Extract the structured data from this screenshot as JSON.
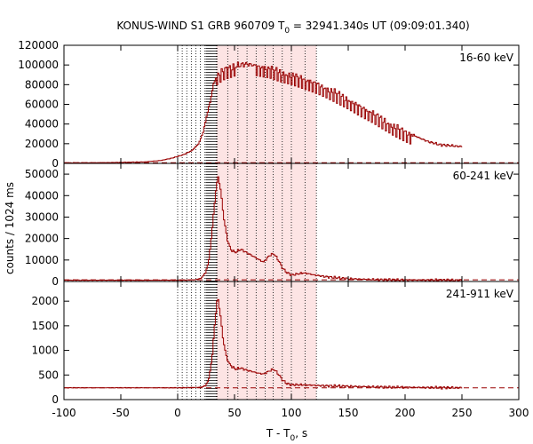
{
  "chart_data": {
    "type": "line",
    "title": "KONUS-WIND S1 GRB 960709 T",
    "title_sub": "0",
    "title_rest": " = 32941.340s UT (09:09:01.340)",
    "xlabel_main": "T - T",
    "xlabel_sub": "0",
    "xlabel_rest": ", s",
    "ylabel": "counts / 1024 ms",
    "xlim": [
      -100,
      300
    ],
    "x_ticks": [
      -100,
      -50,
      0,
      50,
      100,
      150,
      200,
      250,
      300
    ],
    "colors": {
      "curve": "#990000",
      "shade": "#fde4e4",
      "background_line": "#990000"
    },
    "shaded_interval": [
      34,
      122
    ],
    "vlines_sparse": [
      0,
      4,
      8,
      12,
      16,
      20,
      24
    ],
    "vlines_dense_range": [
      25,
      35
    ],
    "vlines_shaded": [
      34,
      44,
      53,
      61,
      69,
      77,
      84,
      92,
      100,
      112,
      122
    ],
    "panels": [
      {
        "label": "16-60 keV",
        "ylim": [
          0,
          120000
        ],
        "y_ticks": [
          0,
          20000,
          40000,
          60000,
          80000,
          100000,
          120000
        ],
        "background_level": 700,
        "series": [
          {
            "x": -100,
            "y": 500
          },
          {
            "x": -60,
            "y": 800
          },
          {
            "x": -30,
            "y": 1500
          },
          {
            "x": -15,
            "y": 3000
          },
          {
            "x": -5,
            "y": 5500
          },
          {
            "x": 5,
            "y": 9000
          },
          {
            "x": 12,
            "y": 13000
          },
          {
            "x": 18,
            "y": 20000
          },
          {
            "x": 22,
            "y": 32000
          },
          {
            "x": 25,
            "y": 48000
          },
          {
            "x": 28,
            "y": 62000
          },
          {
            "x": 31,
            "y": 80000
          },
          {
            "x": 34,
            "y": 90000
          },
          {
            "x": 40,
            "y": 95000
          },
          {
            "x": 50,
            "y": 99000
          },
          {
            "x": 60,
            "y": 101000
          },
          {
            "x": 70,
            "y": 99000
          },
          {
            "x": 80,
            "y": 97000
          },
          {
            "x": 90,
            "y": 93000
          },
          {
            "x": 100,
            "y": 90000
          },
          {
            "x": 110,
            "y": 86000
          },
          {
            "x": 120,
            "y": 82000
          },
          {
            "x": 130,
            "y": 77000
          },
          {
            "x": 140,
            "y": 71000
          },
          {
            "x": 150,
            "y": 65000
          },
          {
            "x": 160,
            "y": 58000
          },
          {
            "x": 170,
            "y": 52000
          },
          {
            "x": 180,
            "y": 45000
          },
          {
            "x": 190,
            "y": 38000
          },
          {
            "x": 200,
            "y": 32000
          },
          {
            "x": 210,
            "y": 27000
          },
          {
            "x": 220,
            "y": 22000
          },
          {
            "x": 230,
            "y": 19000
          },
          {
            "x": 240,
            "y": 18000
          },
          {
            "x": 250,
            "y": 17000
          }
        ]
      },
      {
        "label": "60-241 keV",
        "ylim": [
          0,
          55000
        ],
        "y_ticks": [
          0,
          10000,
          20000,
          30000,
          40000,
          50000
        ],
        "background_level": 800,
        "series": [
          {
            "x": -100,
            "y": 600
          },
          {
            "x": 0,
            "y": 600
          },
          {
            "x": 15,
            "y": 800
          },
          {
            "x": 20,
            "y": 1500
          },
          {
            "x": 24,
            "y": 4000
          },
          {
            "x": 27,
            "y": 10000
          },
          {
            "x": 30,
            "y": 25000
          },
          {
            "x": 33,
            "y": 42000
          },
          {
            "x": 35,
            "y": 49000
          },
          {
            "x": 37,
            "y": 44000
          },
          {
            "x": 40,
            "y": 30000
          },
          {
            "x": 43,
            "y": 20000
          },
          {
            "x": 46,
            "y": 15000
          },
          {
            "x": 50,
            "y": 13500
          },
          {
            "x": 55,
            "y": 15000
          },
          {
            "x": 60,
            "y": 13500
          },
          {
            "x": 65,
            "y": 12000
          },
          {
            "x": 70,
            "y": 10500
          },
          {
            "x": 75,
            "y": 9000
          },
          {
            "x": 80,
            "y": 12000
          },
          {
            "x": 84,
            "y": 13000
          },
          {
            "x": 88,
            "y": 10000
          },
          {
            "x": 92,
            "y": 6000
          },
          {
            "x": 96,
            "y": 4000
          },
          {
            "x": 100,
            "y": 3000
          },
          {
            "x": 105,
            "y": 3500
          },
          {
            "x": 110,
            "y": 4000
          },
          {
            "x": 115,
            "y": 3600
          },
          {
            "x": 120,
            "y": 3000
          },
          {
            "x": 130,
            "y": 2200
          },
          {
            "x": 140,
            "y": 1700
          },
          {
            "x": 150,
            "y": 1300
          },
          {
            "x": 170,
            "y": 900
          },
          {
            "x": 200,
            "y": 700
          },
          {
            "x": 250,
            "y": 600
          }
        ]
      },
      {
        "label": "241-911 keV",
        "ylim": [
          0,
          2400
        ],
        "y_ticks": [
          0,
          500,
          1000,
          1500,
          2000
        ],
        "background_level": 240,
        "series": [
          {
            "x": -100,
            "y": 240
          },
          {
            "x": 0,
            "y": 240
          },
          {
            "x": 20,
            "y": 250
          },
          {
            "x": 24,
            "y": 280
          },
          {
            "x": 27,
            "y": 420
          },
          {
            "x": 30,
            "y": 900
          },
          {
            "x": 32,
            "y": 1500
          },
          {
            "x": 34,
            "y": 1980
          },
          {
            "x": 35,
            "y": 2050
          },
          {
            "x": 37,
            "y": 1750
          },
          {
            "x": 39,
            "y": 1300
          },
          {
            "x": 42,
            "y": 900
          },
          {
            "x": 45,
            "y": 720
          },
          {
            "x": 50,
            "y": 620
          },
          {
            "x": 55,
            "y": 640
          },
          {
            "x": 60,
            "y": 600
          },
          {
            "x": 65,
            "y": 570
          },
          {
            "x": 70,
            "y": 540
          },
          {
            "x": 75,
            "y": 520
          },
          {
            "x": 80,
            "y": 580
          },
          {
            "x": 84,
            "y": 620
          },
          {
            "x": 88,
            "y": 520
          },
          {
            "x": 92,
            "y": 390
          },
          {
            "x": 96,
            "y": 320
          },
          {
            "x": 100,
            "y": 300
          },
          {
            "x": 110,
            "y": 300
          },
          {
            "x": 120,
            "y": 290
          },
          {
            "x": 130,
            "y": 280
          },
          {
            "x": 150,
            "y": 270
          },
          {
            "x": 180,
            "y": 255
          },
          {
            "x": 220,
            "y": 245
          },
          {
            "x": 250,
            "y": 240
          }
        ]
      }
    ]
  }
}
